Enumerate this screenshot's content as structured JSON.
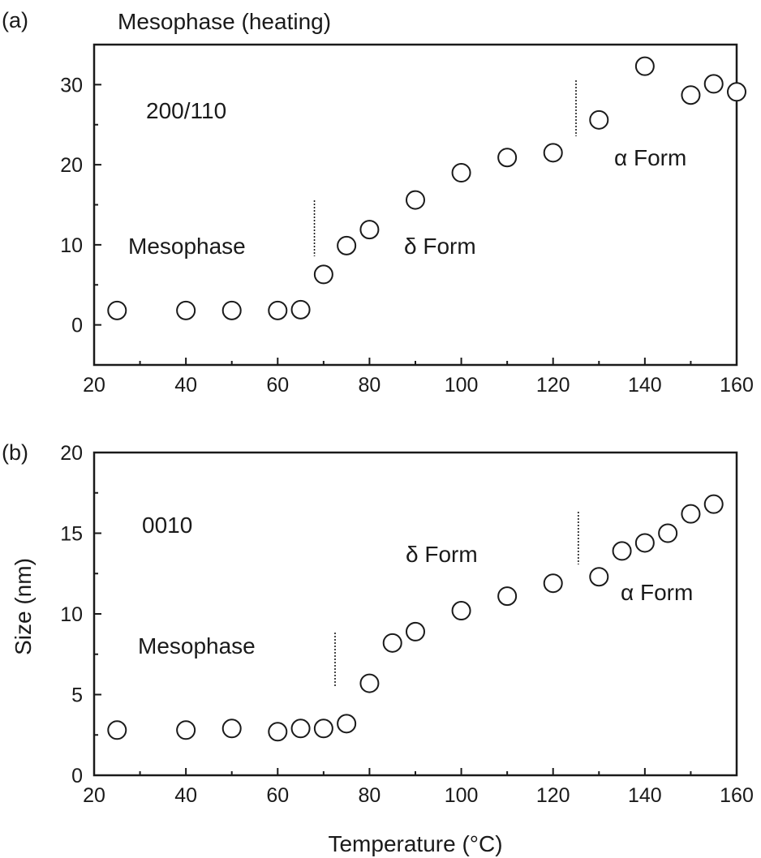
{
  "chart_data": [
    {
      "type": "scatter",
      "panel_label": "(a)",
      "title": "Mesophase (heating)",
      "reflection": "200/110",
      "xlabel": "",
      "ylabel": "",
      "xlim": [
        20,
        160
      ],
      "ylim": [
        -5,
        35
      ],
      "x_ticks": [
        20,
        40,
        60,
        80,
        100,
        120,
        140,
        160
      ],
      "y_ticks": [
        0,
        10,
        20,
        30
      ],
      "grid": false,
      "marker": "open-circle",
      "x": [
        25,
        40,
        50,
        60,
        65,
        70,
        75,
        80,
        90,
        100,
        110,
        120,
        130,
        140,
        150,
        155,
        160
      ],
      "y": [
        1.8,
        1.8,
        1.8,
        1.8,
        1.9,
        6.3,
        9.9,
        11.9,
        15.6,
        19.0,
        20.9,
        21.5,
        25.6,
        32.3,
        28.7,
        30.1,
        29.1
      ],
      "phase_boundaries": [
        68,
        125
      ],
      "annotations": [
        "Mesophase",
        "δ Form",
        "α Form"
      ]
    },
    {
      "type": "scatter",
      "panel_label": "(b)",
      "reflection": "0010",
      "xlabel": "Temperature (°C)",
      "ylabel": "Size (nm)",
      "xlim": [
        20,
        160
      ],
      "ylim": [
        0,
        20
      ],
      "x_ticks": [
        20,
        40,
        60,
        80,
        100,
        120,
        140,
        160
      ],
      "y_ticks": [
        0,
        5,
        10,
        15,
        20
      ],
      "grid": false,
      "marker": "open-circle",
      "x": [
        25,
        40,
        50,
        60,
        65,
        70,
        75,
        80,
        85,
        90,
        100,
        110,
        120,
        130,
        135,
        140,
        145,
        150,
        155
      ],
      "y": [
        2.8,
        2.8,
        2.9,
        2.7,
        2.9,
        2.9,
        3.2,
        5.7,
        8.2,
        8.9,
        10.2,
        11.1,
        11.9,
        12.3,
        13.9,
        14.4,
        15.0,
        16.2,
        16.8
      ],
      "phase_boundaries": [
        72.5,
        125.5
      ],
      "annotations": [
        "Mesophase",
        "δ Form",
        "α Form"
      ]
    }
  ]
}
